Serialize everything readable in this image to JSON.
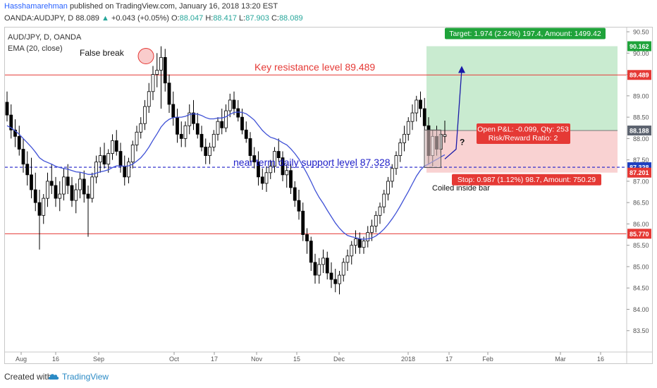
{
  "header": {
    "author": "Hasshamarehman",
    "published": "published on TradingView.com, January 16, 2018 13:20 EST",
    "symbol": "OANDA:AUDJPY, D",
    "last": "88.089",
    "change": "+0.043 (+0.05%)",
    "o_label": "O:",
    "o_value": "88.047",
    "h_label": "H:",
    "h_value": "88.417",
    "l_label": "L:",
    "l_value": "87.903",
    "c_label": "C:",
    "c_value": "88.089"
  },
  "legend": {
    "symbol": "AUD/JPY, D, OANDA",
    "indicator": "EMA (20, close)"
  },
  "footer": {
    "created_with": "Created with",
    "brand": "TradingView"
  },
  "colors": {
    "resistance": "#e53935",
    "support": "#1e1ec8",
    "ema": "#3f51d6",
    "target_zone": "#b7e4c0",
    "stop_zone": "#f8c7c7",
    "target_label": "#1fa33a",
    "stop_label": "#e53935",
    "price_badge_red": "#e53935",
    "price_badge_blue": "#1e3fbf",
    "price_badge_gray": "#5d6470"
  },
  "chart_data": {
    "type": "candlestick",
    "ylim": [
      83.0,
      90.6
    ],
    "y_ticks": [
      "90.50",
      "90.00",
      "89.50",
      "89.00",
      "88.50",
      "88.00",
      "87.50",
      "87.00",
      "86.50",
      "86.00",
      "85.50",
      "85.00",
      "84.50",
      "84.00",
      "83.50"
    ],
    "x_ticks": [
      "Aug",
      "16",
      "Sep",
      "Oct",
      "17",
      "Nov",
      "15",
      "Dec",
      "2018",
      "17",
      "Feb",
      "Mar",
      "16"
    ],
    "price_badges": [
      {
        "label": "90.162",
        "value": 90.162,
        "style": "green"
      },
      {
        "label": "89.489",
        "value": 89.489,
        "style": "red"
      },
      {
        "label": "88.188",
        "value": 88.188,
        "style": "gray"
      },
      {
        "label": "87.328",
        "value": 87.328,
        "style": "blue"
      },
      {
        "label": "87.201",
        "value": 87.201,
        "style": "red"
      },
      {
        "label": "85.770",
        "value": 85.77,
        "style": "red"
      }
    ],
    "levels": [
      {
        "name": "Key resistance level 89.489",
        "value": 89.489,
        "style": "solid-red"
      },
      {
        "name": "near term daily support level 87.328",
        "value": 87.328,
        "style": "dashed-blue"
      },
      {
        "name": "",
        "value": 85.77,
        "style": "solid-red"
      }
    ],
    "annotations": {
      "false_break": "False break",
      "resistance_text": "Key resistance level 89.489",
      "support_text": "near term daily support level 87.328",
      "coiled": "Coiled inside bar",
      "question": "?"
    },
    "position": {
      "entry": 88.188,
      "target": 90.162,
      "stop": 87.201,
      "target_text": "Target: 1.974 (2.24%) 197.4, Amount: 1499.42",
      "stop_text": "Stop: 0.987 (1.12%) 98.7, Amount: 750.29",
      "pnl_text": "Open P&L: -0.099, Qty: 253",
      "rr_text": "Risk/Reward Ratio: 2"
    },
    "candles": [
      [
        88.85,
        89.1,
        88.4,
        88.55
      ],
      [
        88.55,
        88.8,
        88.0,
        88.2
      ],
      [
        88.2,
        88.45,
        87.8,
        88.05
      ],
      [
        88.05,
        88.3,
        87.6,
        87.75
      ],
      [
        87.75,
        88.0,
        87.2,
        87.4
      ],
      [
        87.4,
        87.7,
        86.9,
        87.15
      ],
      [
        87.15,
        87.55,
        86.6,
        86.8
      ],
      [
        86.8,
        87.2,
        86.3,
        86.5
      ],
      [
        86.5,
        86.8,
        85.4,
        86.2
      ],
      [
        86.2,
        86.7,
        86.0,
        86.6
      ],
      [
        86.6,
        87.2,
        86.4,
        87.0
      ],
      [
        87.0,
        87.4,
        86.7,
        86.9
      ],
      [
        86.9,
        87.1,
        86.4,
        86.6
      ],
      [
        86.6,
        87.0,
        86.3,
        86.7
      ],
      [
        86.7,
        87.3,
        86.55,
        87.1
      ],
      [
        87.1,
        87.4,
        86.7,
        86.9
      ],
      [
        86.9,
        87.1,
        86.4,
        86.55
      ],
      [
        86.55,
        86.95,
        86.25,
        86.8
      ],
      [
        86.8,
        87.2,
        86.6,
        87.05
      ],
      [
        87.05,
        87.25,
        86.5,
        86.7
      ],
      [
        86.7,
        86.9,
        85.7,
        86.6
      ],
      [
        86.6,
        87.2,
        86.5,
        87.1
      ],
      [
        87.1,
        87.6,
        86.95,
        87.45
      ],
      [
        87.45,
        87.8,
        87.2,
        87.6
      ],
      [
        87.6,
        87.9,
        87.3,
        87.4
      ],
      [
        87.4,
        87.75,
        87.2,
        87.65
      ],
      [
        87.65,
        88.1,
        87.5,
        87.95
      ],
      [
        87.95,
        88.2,
        87.6,
        87.7
      ],
      [
        87.7,
        87.9,
        87.2,
        87.35
      ],
      [
        87.35,
        87.6,
        86.9,
        87.1
      ],
      [
        87.1,
        87.55,
        86.95,
        87.45
      ],
      [
        87.45,
        87.95,
        87.3,
        87.85
      ],
      [
        87.85,
        88.3,
        87.7,
        88.15
      ],
      [
        88.15,
        88.5,
        88.0,
        88.35
      ],
      [
        88.35,
        88.9,
        88.2,
        88.75
      ],
      [
        88.75,
        89.3,
        88.6,
        89.1
      ],
      [
        89.1,
        89.7,
        88.9,
        89.5
      ],
      [
        89.5,
        90.0,
        89.2,
        89.6
      ],
      [
        89.6,
        90.16,
        88.7,
        89.9
      ],
      [
        89.9,
        90.1,
        89.1,
        89.3
      ],
      [
        89.3,
        89.5,
        88.6,
        88.8
      ],
      [
        88.8,
        89.1,
        88.3,
        88.5
      ],
      [
        88.5,
        88.7,
        87.9,
        88.1
      ],
      [
        88.1,
        88.4,
        87.8,
        88.0
      ],
      [
        88.0,
        88.4,
        87.8,
        88.3
      ],
      [
        88.3,
        88.8,
        88.1,
        88.6
      ],
      [
        88.6,
        88.9,
        88.2,
        88.35
      ],
      [
        88.35,
        88.6,
        88.0,
        88.1
      ],
      [
        88.1,
        88.3,
        87.7,
        87.8
      ],
      [
        87.8,
        88.0,
        87.4,
        87.6
      ],
      [
        87.6,
        87.9,
        87.4,
        87.8
      ],
      [
        87.8,
        88.2,
        87.7,
        88.1
      ],
      [
        88.1,
        88.5,
        87.95,
        88.4
      ],
      [
        88.4,
        88.7,
        88.1,
        88.25
      ],
      [
        88.25,
        88.8,
        88.15,
        88.65
      ],
      [
        88.65,
        89.05,
        88.5,
        88.9
      ],
      [
        88.9,
        89.1,
        88.55,
        88.7
      ],
      [
        88.7,
        88.9,
        88.4,
        88.5
      ],
      [
        88.5,
        88.7,
        88.1,
        88.2
      ],
      [
        88.2,
        88.4,
        87.9,
        88.0
      ],
      [
        88.0,
        88.15,
        87.45,
        87.6
      ],
      [
        87.6,
        87.8,
        87.3,
        87.45
      ],
      [
        87.45,
        87.7,
        86.9,
        87.1
      ],
      [
        87.1,
        87.3,
        86.8,
        86.95
      ],
      [
        86.95,
        87.35,
        86.75,
        87.2
      ],
      [
        87.2,
        87.5,
        87.05,
        87.35
      ],
      [
        87.35,
        87.8,
        87.2,
        87.7
      ],
      [
        87.7,
        88.0,
        87.45,
        87.55
      ],
      [
        87.55,
        87.7,
        87.0,
        87.15
      ],
      [
        87.15,
        87.4,
        86.85,
        87.25
      ],
      [
        87.25,
        87.4,
        86.7,
        86.85
      ],
      [
        86.85,
        87.0,
        86.4,
        86.55
      ],
      [
        86.55,
        86.8,
        86.1,
        86.3
      ],
      [
        86.3,
        86.5,
        85.6,
        85.75
      ],
      [
        85.75,
        85.9,
        85.3,
        85.6
      ],
      [
        85.6,
        85.7,
        84.9,
        85.1
      ],
      [
        85.1,
        85.3,
        84.6,
        84.8
      ],
      [
        84.8,
        85.2,
        84.6,
        85.05
      ],
      [
        85.05,
        85.4,
        84.85,
        85.2
      ],
      [
        85.2,
        85.35,
        84.7,
        84.85
      ],
      [
        84.85,
        85.1,
        84.5,
        84.7
      ],
      [
        84.7,
        84.95,
        84.4,
        84.6
      ],
      [
        84.6,
        84.9,
        84.35,
        84.8
      ],
      [
        84.8,
        85.2,
        84.65,
        85.1
      ],
      [
        85.1,
        85.4,
        84.9,
        85.25
      ],
      [
        85.25,
        85.6,
        85.05,
        85.5
      ],
      [
        85.5,
        85.85,
        85.3,
        85.65
      ],
      [
        85.65,
        85.8,
        85.3,
        85.45
      ],
      [
        85.45,
        85.7,
        85.3,
        85.6
      ],
      [
        85.6,
        85.95,
        85.45,
        85.8
      ],
      [
        85.8,
        86.1,
        85.6,
        85.95
      ],
      [
        85.95,
        86.3,
        85.8,
        86.2
      ],
      [
        86.2,
        86.5,
        86.0,
        86.4
      ],
      [
        86.4,
        86.8,
        86.25,
        86.7
      ],
      [
        86.7,
        87.1,
        86.55,
        87.0
      ],
      [
        87.0,
        87.4,
        86.85,
        87.3
      ],
      [
        87.3,
        87.7,
        87.15,
        87.6
      ],
      [
        87.6,
        88.0,
        87.45,
        87.9
      ],
      [
        87.9,
        88.3,
        87.7,
        88.1
      ],
      [
        88.1,
        88.5,
        87.95,
        88.4
      ],
      [
        88.4,
        88.8,
        88.2,
        88.6
      ],
      [
        88.6,
        89.0,
        88.4,
        88.9
      ],
      [
        88.9,
        89.1,
        88.5,
        88.7
      ],
      [
        88.7,
        88.95,
        88.2,
        88.3
      ],
      [
        88.3,
        88.5,
        87.4,
        87.6
      ],
      [
        87.6,
        88.2,
        87.35,
        88.05
      ],
      [
        88.05,
        88.3,
        87.6,
        87.75
      ],
      [
        87.75,
        88.2,
        87.65,
        88.1
      ],
      [
        88.05,
        88.42,
        87.9,
        88.09
      ]
    ],
    "ema": [
      88.3,
      88.25,
      88.18,
      88.1,
      88.0,
      87.9,
      87.8,
      87.68,
      87.55,
      87.48,
      87.44,
      87.4,
      87.35,
      87.32,
      87.3,
      87.28,
      87.25,
      87.22,
      87.21,
      87.19,
      87.16,
      87.16,
      87.19,
      87.22,
      87.24,
      87.27,
      87.32,
      87.36,
      87.36,
      87.35,
      87.36,
      87.4,
      87.47,
      87.55,
      87.66,
      87.8,
      87.96,
      88.11,
      88.27,
      88.38,
      88.45,
      88.49,
      88.5,
      88.5,
      88.52,
      88.56,
      88.58,
      88.57,
      88.54,
      88.49,
      88.46,
      88.46,
      88.48,
      88.48,
      88.51,
      88.57,
      88.61,
      88.62,
      88.61,
      88.58,
      88.51,
      88.43,
      88.31,
      88.19,
      88.1,
      88.03,
      88.0,
      87.96,
      87.9,
      87.85,
      87.76,
      87.65,
      87.52,
      87.35,
      87.18,
      86.99,
      86.79,
      86.62,
      86.48,
      86.32,
      86.17,
      86.02,
      85.9,
      85.8,
      85.73,
      85.7,
      85.68,
      85.65,
      85.64,
      85.65,
      85.67,
      85.72,
      85.79,
      85.88,
      85.99,
      86.12,
      86.26,
      86.42,
      86.59,
      86.76,
      86.94,
      87.12,
      87.26,
      87.36,
      87.4,
      87.46,
      87.51,
      87.57,
      87.62
    ]
  }
}
